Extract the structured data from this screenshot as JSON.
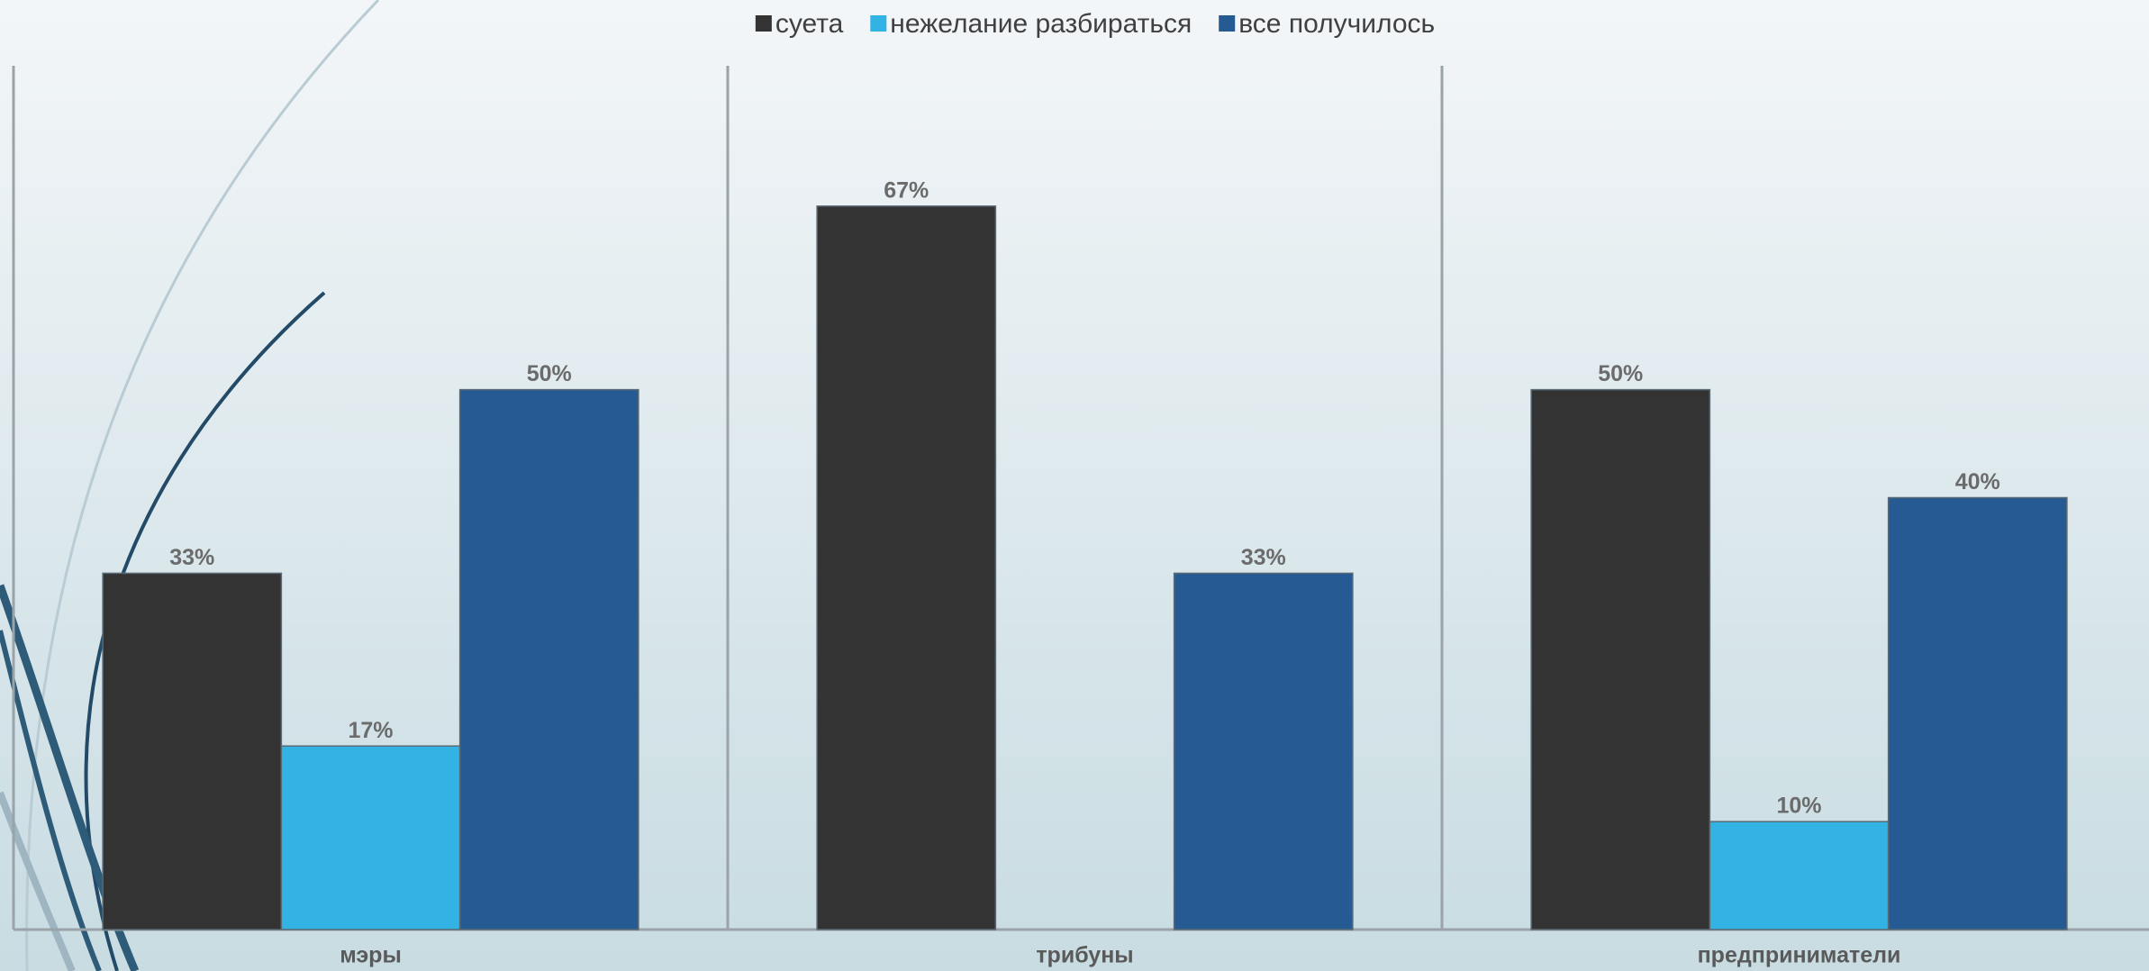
{
  "chart_data": {
    "type": "bar",
    "categories": [
      "мэры",
      "трибуны",
      "предприниматели"
    ],
    "series": [
      {
        "name": "суета",
        "color": "#333333",
        "values": [
          33,
          67,
          50
        ],
        "value_labels": [
          "33%",
          "67%",
          "50%"
        ]
      },
      {
        "name": "нежелание разбираться",
        "color": "#33b3e3",
        "values": [
          17,
          null,
          10
        ],
        "value_labels": [
          "17%",
          null,
          "10%"
        ]
      },
      {
        "name": "все получилось",
        "color": "#255a93",
        "values": [
          50,
          33,
          40
        ],
        "value_labels": [
          "50%",
          "33%",
          "40%"
        ]
      }
    ],
    "ylim": [
      0,
      80
    ],
    "legend": "top"
  }
}
